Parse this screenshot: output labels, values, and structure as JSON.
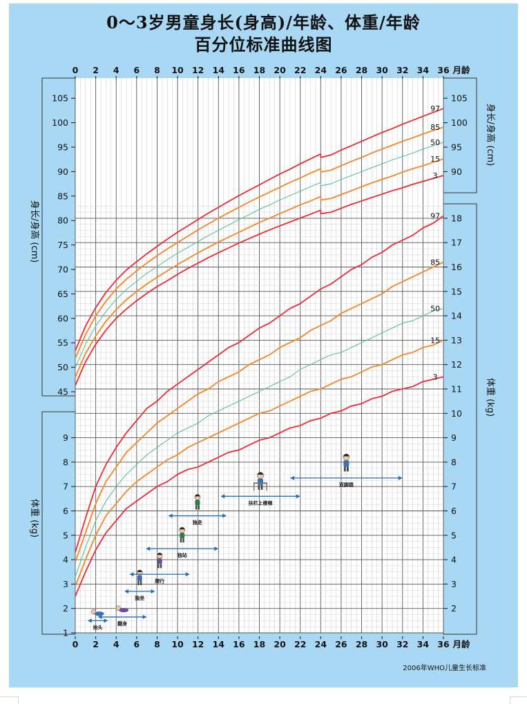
{
  "title_line1": "0～3岁男童身长(身高)/年龄、体重/年龄",
  "title_line2": "百分位标准曲线图",
  "footer": "2006年WHO儿童生长标准",
  "colors": {
    "background": "#a9d8f5",
    "grid_bg": "#ffffff",
    "p3_p97": "#e8323c",
    "p15_p85": "#f28a2e",
    "p50": "#5cbf9a",
    "milestone_arrow": "#1f6fb8"
  },
  "chart_data": [
    {
      "type": "line",
      "title": "身长/年龄",
      "xlabel": "月龄",
      "ylabel": "身长/身高 (cm)",
      "right_label": "身长/身高 (cm)",
      "xlim": [
        0,
        36
      ],
      "ylim": [
        43,
        108
      ],
      "x_ticks": [
        0,
        2,
        4,
        6,
        8,
        10,
        12,
        14,
        16,
        18,
        20,
        22,
        24,
        26,
        28,
        30,
        32,
        34,
        36
      ],
      "x_tick_unit": "月龄",
      "y_ticks_left": [
        45,
        50,
        55,
        60,
        65,
        70,
        75,
        80,
        85,
        90,
        95,
        100,
        105
      ],
      "y_ticks_right": [
        90,
        95,
        100,
        105
      ],
      "x": [
        0,
        1,
        2,
        3,
        4,
        5,
        6,
        7,
        8,
        9,
        10,
        11,
        12,
        13,
        14,
        15,
        16,
        17,
        18,
        19,
        20,
        21,
        22,
        23,
        24,
        25,
        26,
        27,
        28,
        29,
        30,
        31,
        32,
        33,
        34,
        35,
        36
      ],
      "series": [
        {
          "name": "97",
          "values": [
            53.4,
            58.4,
            62.2,
            65.3,
            67.8,
            69.9,
            71.6,
            73.2,
            74.7,
            76.2,
            77.6,
            78.9,
            80.2,
            81.5,
            82.7,
            83.9,
            85.1,
            86.2,
            87.3,
            88.4,
            89.5,
            90.5,
            91.6,
            92.6,
            93.6,
            93.4,
            94.4,
            95.3,
            96.2,
            97.1,
            98.0,
            98.8,
            99.7,
            100.5,
            101.3,
            102.1,
            102.9
          ]
        },
        {
          "name": "85",
          "values": [
            51.8,
            56.7,
            60.5,
            63.5,
            66.0,
            68.0,
            69.7,
            71.3,
            72.8,
            74.2,
            75.5,
            76.8,
            78.1,
            79.3,
            80.5,
            81.6,
            82.7,
            83.8,
            84.8,
            85.8,
            86.8,
            87.8,
            88.7,
            89.7,
            90.6,
            90.3,
            91.2,
            92.1,
            92.9,
            93.8,
            94.6,
            95.4,
            96.2,
            96.9,
            97.7,
            98.4,
            99.1
          ]
        },
        {
          "name": "50",
          "values": [
            49.9,
            54.7,
            58.4,
            61.4,
            63.9,
            65.9,
            67.6,
            69.2,
            70.6,
            72.0,
            73.3,
            74.5,
            75.7,
            76.9,
            78.0,
            79.1,
            80.2,
            81.2,
            82.3,
            83.2,
            84.2,
            85.1,
            86.0,
            86.9,
            87.8,
            87.5,
            88.4,
            89.2,
            90.0,
            90.8,
            91.6,
            92.4,
            93.1,
            93.8,
            94.6,
            95.3,
            96.0
          ]
        },
        {
          "name": "15",
          "values": [
            48.0,
            52.8,
            56.4,
            59.4,
            61.8,
            63.8,
            65.5,
            67.0,
            68.4,
            69.7,
            71.0,
            72.2,
            73.4,
            74.5,
            75.6,
            76.6,
            77.6,
            78.6,
            79.6,
            80.5,
            81.4,
            82.3,
            83.2,
            84.0,
            84.9,
            84.5,
            85.3,
            86.1,
            86.9,
            87.7,
            88.4,
            89.1,
            89.9,
            90.6,
            91.2,
            91.9,
            92.6
          ]
        },
        {
          "name": "3",
          "values": [
            46.3,
            51.1,
            54.7,
            57.6,
            60.0,
            61.9,
            63.6,
            65.1,
            66.5,
            67.7,
            69.0,
            70.2,
            71.3,
            72.4,
            73.4,
            74.4,
            75.4,
            76.3,
            77.2,
            78.1,
            78.9,
            79.7,
            80.5,
            81.3,
            82.1,
            81.7,
            82.5,
            83.3,
            84.0,
            84.7,
            85.4,
            86.1,
            86.7,
            87.4,
            88.0,
            88.6,
            89.2
          ]
        }
      ]
    },
    {
      "type": "line",
      "title": "体重/年龄",
      "xlabel": "月龄",
      "ylabel": "体重 (kg)",
      "right_label": "体重 (kg)",
      "xlim": [
        0,
        36
      ],
      "ylim": [
        1,
        18.5
      ],
      "x_ticks": [
        0,
        2,
        4,
        6,
        8,
        10,
        12,
        14,
        16,
        18,
        20,
        22,
        24,
        26,
        28,
        30,
        32,
        34,
        36
      ],
      "x_tick_unit": "月龄",
      "y_ticks_left": [
        1,
        2,
        3,
        4,
        5,
        6,
        7,
        8,
        9
      ],
      "y_ticks_right": [
        2,
        3,
        4,
        5,
        6,
        7,
        8,
        9,
        10,
        11,
        12,
        13,
        14,
        15,
        16,
        17,
        18
      ],
      "x": [
        0,
        1,
        2,
        3,
        4,
        5,
        6,
        7,
        8,
        9,
        10,
        11,
        12,
        13,
        14,
        15,
        16,
        17,
        18,
        19,
        20,
        21,
        22,
        23,
        24,
        25,
        26,
        27,
        28,
        29,
        30,
        31,
        32,
        33,
        34,
        35,
        36
      ],
      "series": [
        {
          "name": "97",
          "values": [
            4.3,
            5.7,
            7.0,
            7.9,
            8.6,
            9.2,
            9.7,
            10.2,
            10.5,
            10.9,
            11.2,
            11.5,
            11.8,
            12.1,
            12.4,
            12.7,
            12.9,
            13.2,
            13.5,
            13.7,
            14.0,
            14.3,
            14.5,
            14.8,
            15.1,
            15.3,
            15.6,
            15.9,
            16.1,
            16.4,
            16.6,
            16.9,
            17.1,
            17.3,
            17.6,
            17.8,
            18.1
          ]
        },
        {
          "name": "85",
          "values": [
            3.9,
            5.1,
            6.3,
            7.2,
            7.8,
            8.4,
            8.8,
            9.2,
            9.6,
            9.9,
            10.2,
            10.5,
            10.8,
            11.0,
            11.3,
            11.5,
            11.7,
            12.0,
            12.2,
            12.4,
            12.7,
            12.9,
            13.1,
            13.4,
            13.6,
            13.8,
            14.1,
            14.3,
            14.5,
            14.7,
            14.9,
            15.2,
            15.4,
            15.6,
            15.8,
            16.0,
            16.2
          ]
        },
        {
          "name": "50",
          "values": [
            3.3,
            4.5,
            5.6,
            6.4,
            7.0,
            7.5,
            7.9,
            8.3,
            8.6,
            8.9,
            9.2,
            9.4,
            9.6,
            9.9,
            10.1,
            10.3,
            10.5,
            10.7,
            10.9,
            11.1,
            11.3,
            11.5,
            11.8,
            12.0,
            12.2,
            12.4,
            12.5,
            12.7,
            12.9,
            13.1,
            13.3,
            13.5,
            13.7,
            13.8,
            14.0,
            14.2,
            14.3
          ]
        },
        {
          "name": "15",
          "values": [
            2.9,
            4.0,
            5.0,
            5.8,
            6.3,
            6.8,
            7.2,
            7.5,
            7.8,
            8.1,
            8.3,
            8.6,
            8.8,
            9.0,
            9.2,
            9.4,
            9.6,
            9.8,
            10.0,
            10.1,
            10.3,
            10.5,
            10.7,
            10.9,
            11.0,
            11.2,
            11.4,
            11.5,
            11.7,
            11.9,
            12.0,
            12.2,
            12.4,
            12.5,
            12.7,
            12.8,
            13.0
          ]
        },
        {
          "name": "3",
          "values": [
            2.5,
            3.5,
            4.4,
            5.1,
            5.6,
            6.1,
            6.4,
            6.7,
            7.0,
            7.2,
            7.5,
            7.7,
            7.8,
            8.0,
            8.2,
            8.4,
            8.5,
            8.7,
            8.9,
            9.0,
            9.2,
            9.4,
            9.5,
            9.7,
            9.8,
            10.0,
            10.1,
            10.3,
            10.4,
            10.6,
            10.7,
            10.9,
            11.0,
            11.1,
            11.3,
            11.4,
            11.5
          ]
        }
      ]
    }
  ],
  "milestones": [
    {
      "label": "抬头",
      "start": 1.2,
      "end": 3.2,
      "y": 1.5,
      "figure": "baby-lifting-head-icon"
    },
    {
      "label": "翻身",
      "start": 2.2,
      "end": 7.0,
      "y": 1.65,
      "figure": "baby-rolling-over-icon"
    },
    {
      "label": "独坐",
      "start": 4.8,
      "end": 7.8,
      "y": 2.7,
      "figure": "baby-sitting-icon"
    },
    {
      "label": "爬行",
      "start": 5.3,
      "end": 11.2,
      "y": 3.4,
      "figure": "baby-crawling-icon"
    },
    {
      "label": "独站",
      "start": 6.9,
      "end": 14.0,
      "y": 4.45,
      "figure": "baby-standing-icon"
    },
    {
      "label": "独走",
      "start": 9.1,
      "end": 14.8,
      "y": 5.8,
      "figure": "baby-walking-icon"
    },
    {
      "label": "扶栏上楼梯",
      "start": 14.2,
      "end": 22.0,
      "y": 6.6,
      "figure": "child-climbing-stairs-icon"
    },
    {
      "label": "双脚跳",
      "start": 21.0,
      "end": 32.0,
      "y": 7.35,
      "figure": "child-jumping-icon"
    }
  ]
}
